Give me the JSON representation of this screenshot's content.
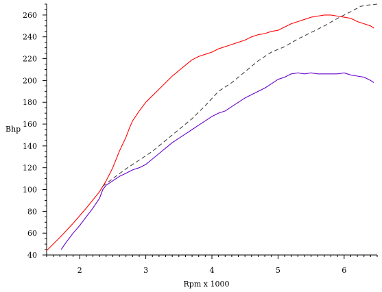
{
  "chart_data": {
    "type": "line",
    "title": "",
    "xlabel": "Rpm x 1000",
    "ylabel": "Bhp",
    "xlim": [
      1.5,
      6.5
    ],
    "ylim": [
      40,
      270
    ],
    "xticks": [
      2,
      3,
      4,
      5,
      6
    ],
    "xtick_labels": [
      "2",
      "3",
      "4",
      "5",
      "6"
    ],
    "yticks": [
      40,
      60,
      80,
      100,
      120,
      140,
      160,
      180,
      200,
      220,
      240,
      260
    ],
    "ytick_labels": [
      "40",
      "60",
      "80",
      "100",
      "120",
      "140",
      "160",
      "180",
      "200",
      "220",
      "240",
      "260"
    ],
    "grid": false,
    "series": [
      {
        "color": "#ff0000",
        "dash": "",
        "x": [
          1.5,
          1.7,
          1.9,
          2.1,
          2.3,
          2.4,
          2.5,
          2.6,
          2.7,
          2.75,
          2.8,
          2.9,
          3.0,
          3.1,
          3.2,
          3.3,
          3.4,
          3.5,
          3.6,
          3.7,
          3.8,
          3.9,
          4.0,
          4.1,
          4.2,
          4.3,
          4.4,
          4.5,
          4.6,
          4.7,
          4.8,
          4.9,
          5.0,
          5.1,
          5.2,
          5.3,
          5.4,
          5.5,
          5.6,
          5.7,
          5.8,
          5.9,
          6.0,
          6.1,
          6.2,
          6.3,
          6.4,
          6.45
        ],
        "y": [
          44,
          56,
          69,
          83,
          98,
          108,
          120,
          135,
          148,
          156,
          163,
          172,
          180,
          186,
          192,
          198,
          204,
          209,
          214,
          219,
          222,
          224,
          226,
          229,
          231,
          233,
          235,
          237,
          240,
          242,
          243,
          245,
          246,
          249,
          252,
          254,
          256,
          258,
          259,
          260,
          260,
          259,
          258,
          257,
          254,
          252,
          250,
          248
        ]
      },
      {
        "color": "#404040",
        "dash": "6,4",
        "x": [
          2.35,
          2.5,
          2.7,
          2.9,
          3.1,
          3.3,
          3.5,
          3.7,
          3.9,
          4.1,
          4.3,
          4.5,
          4.7,
          4.9,
          5.1,
          5.3,
          5.5,
          5.7,
          5.9,
          6.1,
          6.25,
          6.35,
          6.5
        ],
        "y": [
          103,
          110,
          119,
          127,
          135,
          145,
          155,
          165,
          177,
          190,
          198,
          208,
          218,
          226,
          231,
          238,
          244,
          250,
          257,
          263,
          268,
          269,
          270
        ]
      },
      {
        "color": "#6600cc",
        "dash": "",
        "x": [
          1.72,
          1.8,
          1.9,
          2.0,
          2.1,
          2.2,
          2.3,
          2.35,
          2.4,
          2.5,
          2.6,
          2.7,
          2.8,
          2.9,
          3.0,
          3.1,
          3.2,
          3.3,
          3.4,
          3.5,
          3.6,
          3.7,
          3.8,
          3.9,
          4.0,
          4.1,
          4.2,
          4.3,
          4.4,
          4.5,
          4.6,
          4.7,
          4.8,
          4.9,
          5.0,
          5.1,
          5.2,
          5.3,
          5.4,
          5.5,
          5.6,
          5.7,
          5.8,
          5.9,
          6.0,
          6.1,
          6.2,
          6.3,
          6.4,
          6.45
        ],
        "y": [
          45,
          52,
          60,
          67,
          75,
          83,
          92,
          100,
          104,
          108,
          112,
          115,
          118,
          120,
          123,
          128,
          133,
          138,
          143,
          147,
          151,
          155,
          159,
          163,
          167,
          170,
          172,
          176,
          180,
          184,
          187,
          190,
          193,
          197,
          201,
          203,
          206,
          207,
          206,
          207,
          206,
          206,
          206,
          206,
          207,
          205,
          204,
          203,
          200,
          198
        ]
      }
    ]
  }
}
